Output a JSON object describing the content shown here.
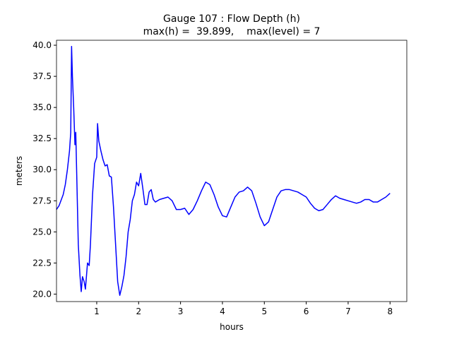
{
  "chart_data": {
    "type": "line",
    "title": "Gauge 107 : Flow Depth (h)",
    "subtitle": "max(h) =  39.899,    max(level) = 7",
    "xlabel": "hours",
    "ylabel": "meters",
    "x": [
      0.04,
      0.1,
      0.2,
      0.25,
      0.3,
      0.35,
      0.38,
      0.4,
      0.42,
      0.45,
      0.48,
      0.5,
      0.52,
      0.54,
      0.56,
      0.6,
      0.63,
      0.66,
      0.7,
      0.73,
      0.78,
      0.82,
      0.85,
      0.9,
      0.95,
      1.0,
      1.02,
      1.05,
      1.1,
      1.15,
      1.2,
      1.25,
      1.3,
      1.35,
      1.4,
      1.45,
      1.5,
      1.55,
      1.6,
      1.65,
      1.7,
      1.75,
      1.8,
      1.85,
      1.9,
      1.95,
      2.0,
      2.05,
      2.1,
      2.15,
      2.2,
      2.25,
      2.3,
      2.35,
      2.4,
      2.5,
      2.6,
      2.7,
      2.8,
      2.9,
      3.0,
      3.1,
      3.2,
      3.3,
      3.4,
      3.5,
      3.6,
      3.7,
      3.8,
      3.9,
      4.0,
      4.1,
      4.2,
      4.3,
      4.4,
      4.5,
      4.6,
      4.7,
      4.8,
      4.9,
      5.0,
      5.1,
      5.2,
      5.3,
      5.4,
      5.5,
      5.6,
      5.7,
      5.8,
      5.9,
      6.0,
      6.1,
      6.2,
      6.3,
      6.4,
      6.5,
      6.6,
      6.7,
      6.8,
      6.9,
      7.0,
      7.1,
      7.2,
      7.3,
      7.4,
      7.5,
      7.6,
      7.7,
      7.8,
      7.9,
      8.0
    ],
    "series": [
      {
        "name": "h",
        "color": "#0000ff",
        "values": [
          26.8,
          27.1,
          28.0,
          28.8,
          30,
          31.5,
          33,
          39.9,
          37.5,
          35,
          32,
          33,
          30,
          27,
          24,
          21.5,
          20.2,
          21.4,
          21.0,
          20.4,
          22.5,
          22.3,
          24,
          28,
          30.5,
          31,
          33.7,
          32.3,
          31.5,
          30.8,
          30.3,
          30.4,
          29.5,
          29.4,
          27,
          24,
          21,
          19.9,
          20.6,
          21.5,
          23,
          25,
          26,
          27.5,
          28,
          29,
          28.7,
          29.7,
          28.5,
          27.2,
          27.2,
          28.2,
          28.4,
          27.6,
          27.4,
          27.6,
          27.7,
          27.8,
          27.5,
          26.8,
          26.8,
          26.9,
          26.4,
          26.8,
          27.5,
          28.3,
          29.0,
          28.8,
          28.0,
          27.0,
          26.3,
          26.2,
          27.0,
          27.8,
          28.2,
          28.3,
          28.6,
          28.3,
          27.3,
          26.2,
          25.5,
          25.8,
          26.8,
          27.8,
          28.3,
          28.4,
          28.4,
          28.3,
          28.2,
          28.0,
          27.8,
          27.3,
          26.9,
          26.7,
          26.8,
          27.2,
          27.6,
          27.9,
          27.7,
          27.6,
          27.5,
          27.4,
          27.3,
          27.4,
          27.6,
          27.6,
          27.4,
          27.4,
          27.6,
          27.8,
          28.1
        ]
      }
    ],
    "xlim": [
      0.04,
      8.4
    ],
    "xticks": [
      1,
      2,
      3,
      4,
      5,
      6,
      7,
      8
    ],
    "ylim": [
      19.4,
      40.4
    ],
    "yticks": [
      {
        "value": 20,
        "label": "20.0"
      },
      22.5,
      {
        "value": 25,
        "label": "25.0"
      },
      27.5,
      {
        "value": 30,
        "label": "30.0"
      },
      32.5,
      {
        "value": 35,
        "label": "35.0"
      },
      37.5,
      {
        "value": 40,
        "label": "40.0"
      }
    ],
    "grid": false
  }
}
